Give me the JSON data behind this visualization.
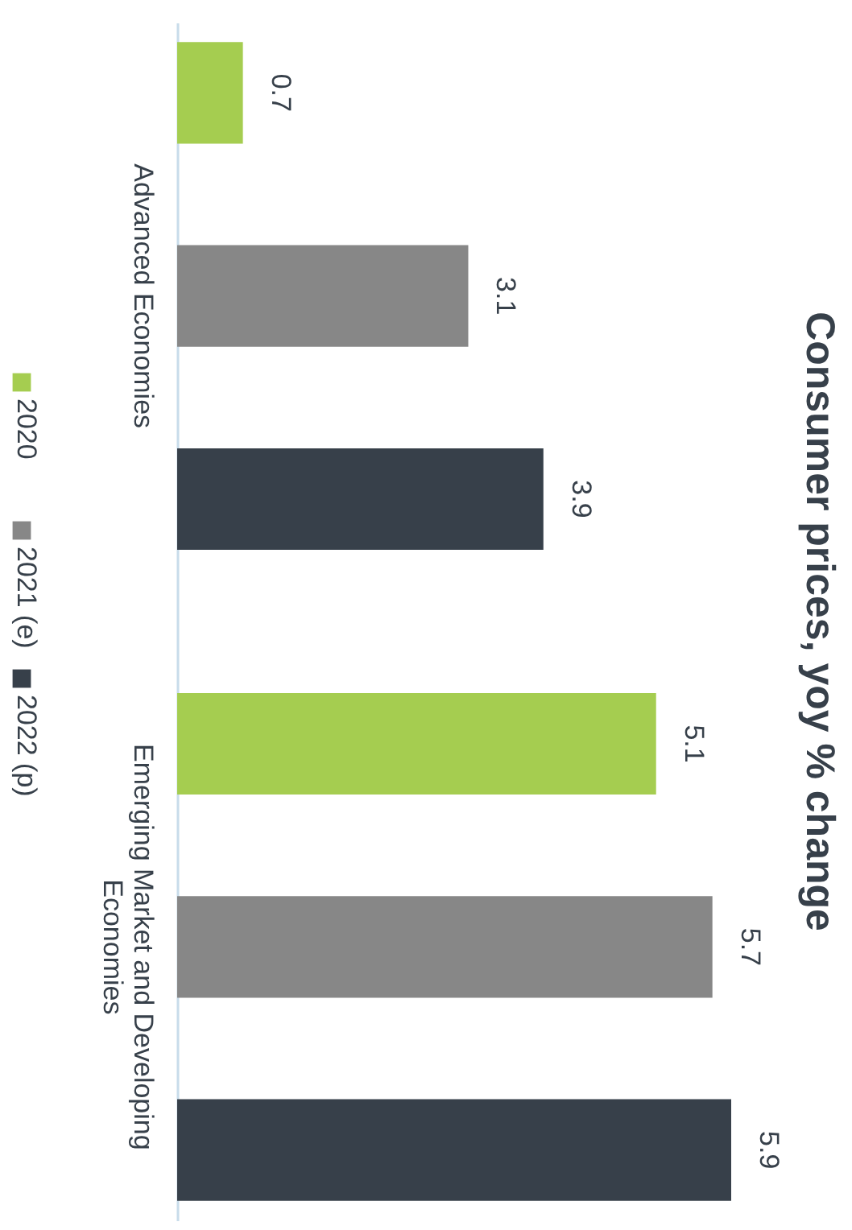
{
  "chart_data": {
    "type": "bar",
    "orientation": "horizontal",
    "title": "Consumer prices, yoy % change",
    "categories": [
      "Advanced Economies",
      "Emerging Market and Developing Economies"
    ],
    "series": [
      {
        "name": "2020",
        "color": "#a5cd50",
        "values": [
          0.7,
          5.1
        ]
      },
      {
        "name": "2021 (e)",
        "color": "#878787",
        "values": [
          3.1,
          5.7
        ]
      },
      {
        "name": "2022 (p)",
        "color": "#37404a",
        "values": [
          3.9,
          5.9
        ]
      }
    ],
    "data_labels": true,
    "legend": "left",
    "grid": false
  }
}
